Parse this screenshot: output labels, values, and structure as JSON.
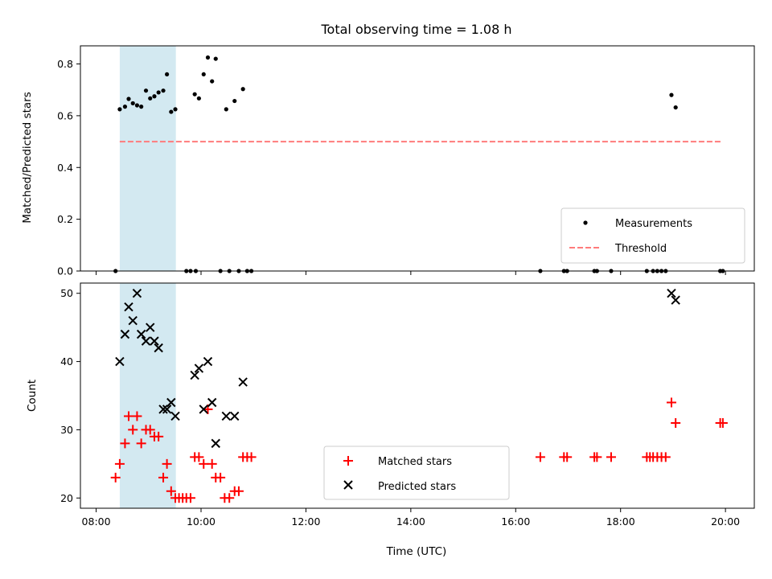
{
  "chart_data": {
    "title": "Total observing time = 1.08 h",
    "xlabel": "Time (UTC)",
    "x_ticks": [
      "08:00",
      "10:00",
      "12:00",
      "14:00",
      "16:00",
      "18:00",
      "20:00"
    ],
    "x_range_hours": [
      7.7,
      20.55
    ],
    "highlight_window": {
      "start": 8.45,
      "end": 9.52,
      "color": "#d3e9f1"
    },
    "panels": [
      {
        "type": "scatter",
        "ylabel": "Matched/Predicted stars",
        "ylim": [
          0,
          0.87
        ],
        "y_ticks": [
          "0.0",
          "0.2",
          "0.4",
          "0.6",
          "0.8"
        ],
        "legend_position": "lower-right",
        "series": [
          {
            "name": "Measurements",
            "marker": "dot",
            "color": "#000000",
            "x": [
              8.45,
              8.55,
              8.62,
              8.7,
              8.78,
              8.86,
              8.95,
              9.03,
              9.11,
              9.19,
              9.28,
              9.35,
              9.43,
              9.51,
              9.88,
              9.96,
              10.05,
              10.13,
              10.21,
              10.28,
              10.48,
              10.64,
              10.8,
              18.97,
              19.05,
              8.37,
              9.72,
              9.8,
              9.9,
              10.37,
              10.54,
              10.72,
              10.88,
              10.96,
              16.47,
              16.92,
              16.98,
              17.5,
              17.55,
              17.82,
              18.5,
              18.62,
              18.7,
              18.78,
              18.86,
              19.9,
              19.95
            ],
            "y": [
              0.625,
              0.635,
              0.665,
              0.648,
              0.64,
              0.635,
              0.697,
              0.667,
              0.675,
              0.69,
              0.697,
              0.76,
              0.615,
              0.625,
              0.683,
              0.667,
              0.76,
              0.825,
              0.733,
              0.82,
              0.625,
              0.657,
              0.703,
              0.68,
              0.632,
              0,
              0,
              0,
              0,
              0,
              0,
              0,
              0,
              0,
              0,
              0,
              0,
              0,
              0,
              0,
              0,
              0,
              0,
              0,
              0,
              0,
              0
            ]
          },
          {
            "name": "Threshold",
            "style": "dashed",
            "color": "#ff7b7b",
            "x": [
              8.45,
              19.95
            ],
            "y": [
              0.5,
              0.5
            ]
          }
        ]
      },
      {
        "type": "scatter",
        "ylabel": "Count",
        "ylim": [
          18.5,
          51.5
        ],
        "y_ticks": [
          "20",
          "30",
          "40",
          "50"
        ],
        "legend_position": "lower-center",
        "series": [
          {
            "name": "Matched stars",
            "marker": "plus",
            "color": "#ff0000",
            "x": [
              8.37,
              8.45,
              8.55,
              8.62,
              8.7,
              8.78,
              8.86,
              8.95,
              9.03,
              9.11,
              9.19,
              9.28,
              9.35,
              9.43,
              9.51,
              9.58,
              9.65,
              9.72,
              9.8,
              9.88,
              9.96,
              10.05,
              10.13,
              10.21,
              10.28,
              10.37,
              10.45,
              10.54,
              10.64,
              10.72,
              10.8,
              10.88,
              10.96,
              16.47,
              16.92,
              16.98,
              17.5,
              17.55,
              17.82,
              18.5,
              18.56,
              18.62,
              18.7,
              18.78,
              18.86,
              18.97,
              19.05,
              19.9,
              19.95
            ],
            "y": [
              23,
              25,
              28,
              32,
              30,
              32,
              28,
              30,
              30,
              29,
              29,
              23,
              25,
              21,
              20,
              20,
              20,
              20,
              20,
              26,
              26,
              25,
              33,
              25,
              23,
              23,
              20,
              20,
              21,
              21,
              26,
              26,
              26,
              26,
              26,
              26,
              26,
              26,
              26,
              26,
              26,
              26,
              26,
              26,
              26,
              34,
              31,
              31,
              31
            ]
          },
          {
            "name": "Predicted stars",
            "marker": "x",
            "color": "#000000",
            "x": [
              8.45,
              8.55,
              8.62,
              8.7,
              8.78,
              8.86,
              8.95,
              9.03,
              9.11,
              9.19,
              9.28,
              9.35,
              9.43,
              9.51,
              9.88,
              9.96,
              10.05,
              10.13,
              10.21,
              10.28,
              10.48,
              10.64,
              10.8,
              18.97,
              19.05
            ],
            "y": [
              40,
              44,
              48,
              46,
              50,
              44,
              43,
              45,
              43,
              42,
              33,
              33,
              34,
              32,
              38,
              39,
              33,
              40,
              34,
              28,
              32,
              32,
              37,
              50,
              49
            ]
          }
        ]
      }
    ]
  }
}
